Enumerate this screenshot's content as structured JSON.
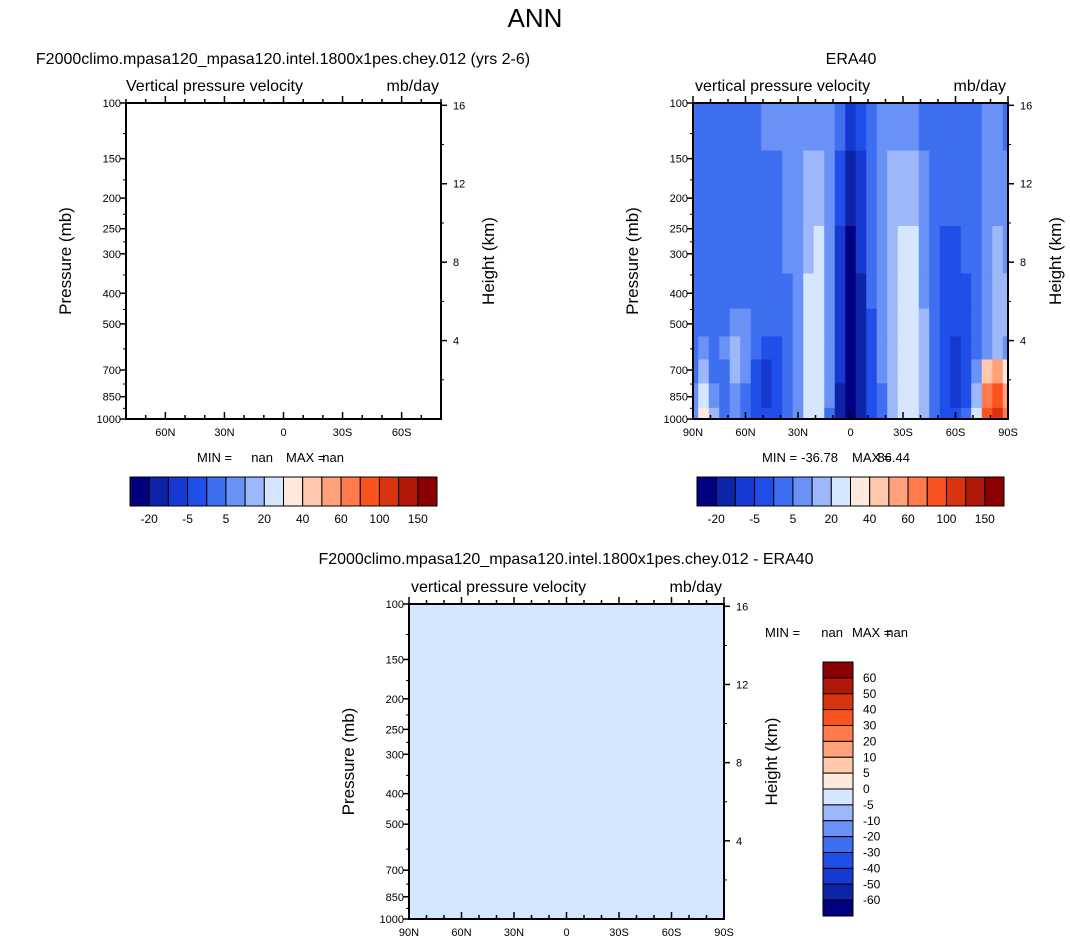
{
  "page_title": "ANN",
  "colors": {
    "ref_scale": [
      "#000080",
      "#0d24a8",
      "#1639d1",
      "#1f4ee9",
      "#3d6ff0",
      "#6a91f5",
      "#9cb8fa",
      "#d6e6ff",
      "#ffe9dc",
      "#ffc8ad",
      "#ffa27c",
      "#ff7a4d",
      "#fa5320",
      "#d93410",
      "#b0180a",
      "#8b0000"
    ],
    "diff_scale": [
      "#000080",
      "#0d24a8",
      "#1639d1",
      "#1f4ee9",
      "#3d6ff0",
      "#6a91f5",
      "#9cb8fa",
      "#d6e6ff",
      "#ffe9dc",
      "#ffc8ad",
      "#ffa27c",
      "#ff7a4d",
      "#fa5320",
      "#d93410",
      "#b0180a",
      "#8b0000"
    ],
    "diff_fill": "#d6e6ff"
  },
  "chart_data": [
    {
      "type": "heatmap",
      "id": "test",
      "title": "F2000climo.mpasa120_mpasa120.intel.1800x1pes.chey.012 (yrs 2-6)",
      "left_string": "Vertical pressure velocity",
      "right_string": "mb/day",
      "ylabel": "Pressure (mb)",
      "ylabel_right": "Height (km)",
      "x_ticks": [
        "60N",
        "30N",
        "0",
        "30S",
        "60S"
      ],
      "x_tick_values": [
        60,
        30,
        0,
        -30,
        -60
      ],
      "xlim": [
        80,
        -80
      ],
      "y_ticks": [
        "100",
        "150",
        "200",
        "250",
        "300",
        "400",
        "500",
        "700",
        "850",
        "1000"
      ],
      "y_tick_values": [
        100,
        150,
        200,
        250,
        300,
        400,
        500,
        700,
        850,
        1000
      ],
      "ylim": [
        1000,
        100
      ],
      "y_scale": "log",
      "height_ticks": [
        "16",
        "12",
        "8",
        "4"
      ],
      "height_tick_values": [
        16,
        12,
        8,
        4
      ],
      "stats": {
        "min_label": "MIN =",
        "min": "nan",
        "max_label": "MAX =",
        "max": "nan"
      },
      "colorbar": {
        "orientation": "horizontal",
        "labels": [
          "-20",
          "-5",
          "5",
          "20",
          "40",
          "60",
          "100",
          "150"
        ]
      },
      "values": null
    },
    {
      "type": "heatmap",
      "id": "ref",
      "title": "ERA40",
      "left_string": "vertical pressure velocity",
      "right_string": "mb/day",
      "ylabel": "Pressure (mb)",
      "ylabel_right": "Height (km)",
      "x_ticks": [
        "90N",
        "60N",
        "30N",
        "0",
        "30S",
        "60S",
        "90S"
      ],
      "x_tick_values": [
        90,
        60,
        30,
        0,
        -30,
        -60,
        -90
      ],
      "xlim": [
        90,
        -90
      ],
      "y_ticks": [
        "100",
        "150",
        "200",
        "250",
        "300",
        "400",
        "500",
        "700",
        "850",
        "1000"
      ],
      "y_tick_values": [
        100,
        150,
        200,
        250,
        300,
        400,
        500,
        700,
        850,
        1000
      ],
      "ylim": [
        1000,
        100
      ],
      "y_scale": "log",
      "height_ticks": [
        "16",
        "12",
        "8",
        "4"
      ],
      "height_tick_values": [
        16,
        12,
        8,
        4
      ],
      "stats": {
        "min_label": "MIN =",
        "min": "-36.78",
        "max_label": "MAX =",
        "max": "86.44"
      },
      "colorbar": {
        "orientation": "horizontal",
        "labels": [
          "-20",
          "-5",
          "5",
          "20",
          "40",
          "60",
          "100",
          "150"
        ]
      },
      "field_lat": [
        90,
        84,
        78,
        72,
        66,
        60,
        54,
        48,
        42,
        36,
        30,
        24,
        18,
        12,
        6,
        0,
        -6,
        -12,
        -18,
        -24,
        -30,
        -36,
        -42,
        -48,
        -54,
        -60,
        -66,
        -72,
        -78,
        -84,
        -90
      ],
      "field_lev": [
        100,
        200,
        300,
        400,
        500,
        600,
        700,
        850,
        1000
      ],
      "field_class": [
        [
          4,
          4,
          4,
          4,
          4,
          4,
          4,
          5,
          5,
          5,
          5,
          5,
          5,
          5,
          4,
          2,
          3,
          4,
          5,
          5,
          5,
          5,
          4,
          4,
          4,
          4,
          4,
          4,
          5,
          5,
          4
        ],
        [
          4,
          4,
          4,
          4,
          4,
          4,
          4,
          4,
          4,
          5,
          5,
          6,
          6,
          5,
          3,
          1,
          2,
          4,
          5,
          6,
          6,
          6,
          5,
          4,
          4,
          4,
          4,
          4,
          5,
          5,
          5
        ],
        [
          4,
          4,
          4,
          4,
          4,
          4,
          4,
          4,
          4,
          5,
          5,
          6,
          7,
          5,
          2,
          0,
          2,
          4,
          5,
          6,
          7,
          7,
          5,
          4,
          3,
          3,
          4,
          4,
          5,
          6,
          5
        ],
        [
          4,
          4,
          4,
          4,
          4,
          4,
          4,
          4,
          4,
          4,
          5,
          7,
          7,
          5,
          2,
          0,
          1,
          4,
          5,
          6,
          7,
          7,
          5,
          4,
          3,
          3,
          3,
          4,
          5,
          6,
          6
        ],
        [
          4,
          4,
          4,
          4,
          5,
          5,
          4,
          4,
          4,
          4,
          5,
          7,
          7,
          5,
          2,
          0,
          1,
          3,
          5,
          6,
          7,
          7,
          6,
          4,
          3,
          3,
          3,
          4,
          5,
          6,
          6
        ],
        [
          4,
          5,
          4,
          5,
          6,
          5,
          4,
          3,
          3,
          4,
          5,
          7,
          7,
          5,
          2,
          0,
          1,
          3,
          5,
          6,
          7,
          7,
          6,
          4,
          3,
          2,
          3,
          4,
          5,
          6,
          5
        ],
        [
          4,
          6,
          4,
          4,
          6,
          5,
          3,
          2,
          3,
          4,
          5,
          7,
          7,
          5,
          2,
          0,
          1,
          3,
          5,
          6,
          7,
          7,
          6,
          4,
          3,
          2,
          3,
          5,
          9,
          10,
          8
        ],
        [
          5,
          7,
          5,
          4,
          5,
          4,
          3,
          2,
          3,
          4,
          5,
          7,
          7,
          5,
          1,
          0,
          1,
          3,
          4,
          6,
          7,
          7,
          6,
          4,
          3,
          2,
          3,
          6,
          11,
          12,
          10
        ],
        [
          5,
          8,
          6,
          4,
          5,
          4,
          3,
          3,
          3,
          4,
          5,
          7,
          7,
          4,
          1,
          0,
          1,
          3,
          4,
          6,
          7,
          7,
          6,
          4,
          3,
          3,
          4,
          7,
          12,
          13,
          11
        ]
      ]
    },
    {
      "type": "heatmap",
      "id": "diff",
      "title": "F2000climo.mpasa120_mpasa120.intel.1800x1pes.chey.012 - ERA40",
      "left_string": "vertical pressure velocity",
      "right_string": "mb/day",
      "ylabel": "Pressure (mb)",
      "ylabel_right": "Height (km)",
      "x_ticks": [
        "90N",
        "60N",
        "30N",
        "0",
        "30S",
        "60S",
        "90S"
      ],
      "x_tick_values": [
        90,
        60,
        30,
        0,
        -30,
        -60,
        -90
      ],
      "xlim": [
        90,
        -90
      ],
      "y_ticks": [
        "100",
        "150",
        "200",
        "250",
        "300",
        "400",
        "500",
        "700",
        "850",
        "1000"
      ],
      "y_tick_values": [
        100,
        150,
        200,
        250,
        300,
        400,
        500,
        700,
        850,
        1000
      ],
      "ylim": [
        1000,
        100
      ],
      "y_scale": "log",
      "height_ticks": [
        "16",
        "12",
        "8",
        "4"
      ],
      "height_tick_values": [
        16,
        12,
        8,
        4
      ],
      "stats": {
        "min_label": "MIN =",
        "min": "nan",
        "max_label": "MAX =",
        "max": "nan"
      },
      "colorbar": {
        "orientation": "vertical",
        "labels": [
          "60",
          "50",
          "40",
          "30",
          "20",
          "10",
          "5",
          "0",
          "-5",
          "-10",
          "-20",
          "-30",
          "-40",
          "-50",
          "-60"
        ]
      },
      "uniform_value": "nan"
    }
  ]
}
